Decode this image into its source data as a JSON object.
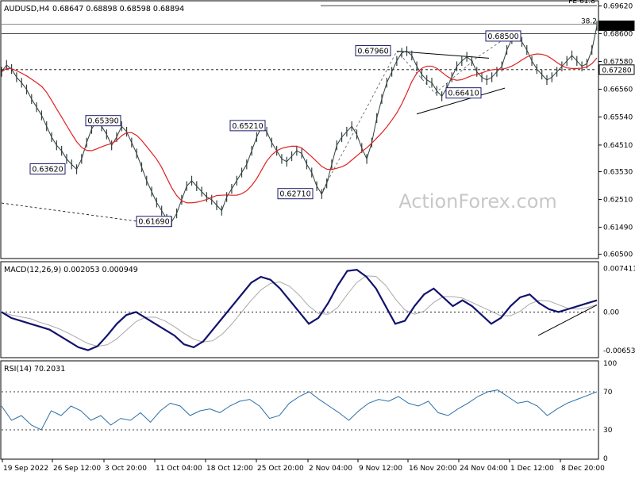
{
  "chart_data": [
    {
      "type": "line",
      "title": "AUDUSD,H4",
      "ohlc": "0.68647 0.68898 0.68598 0.68894",
      "watermark": "ActionForex.com",
      "ylim": [
        0.604,
        0.6975
      ],
      "y_ticks": [
        "0.69620",
        "0.68600",
        "0.67580",
        "0.66560",
        "0.65540",
        "0.64510",
        "0.63530",
        "0.62510",
        "0.61490",
        "0.60500"
      ],
      "x_ticks": [
        "19 Sep 2022",
        "26 Sep 12:00",
        "3 Oct 20:00",
        "11 Oct 04:00",
        "18 Oct 12:00",
        "25 Oct 20:00",
        "2 Nov 04:00",
        "9 Nov 12:00",
        "16 Nov 20:00",
        "24 Nov 04:00",
        "1 Dec 12:00",
        "8 Dec 20:00"
      ],
      "price": [
        0.672,
        0.6745,
        0.673,
        0.67,
        0.668,
        0.6655,
        0.662,
        0.659,
        0.656,
        0.652,
        0.648,
        0.645,
        0.643,
        0.64,
        0.638,
        0.6362,
        0.64,
        0.646,
        0.651,
        0.6539,
        0.652,
        0.649,
        0.645,
        0.648,
        0.652,
        0.65,
        0.646,
        0.642,
        0.637,
        0.632,
        0.628,
        0.624,
        0.621,
        0.618,
        0.6169,
        0.62,
        0.625,
        0.63,
        0.632,
        0.63,
        0.628,
        0.626,
        0.625,
        0.623,
        0.621,
        0.626,
        0.629,
        0.632,
        0.635,
        0.638,
        0.643,
        0.648,
        0.6521,
        0.65,
        0.646,
        0.643,
        0.64,
        0.639,
        0.641,
        0.643,
        0.642,
        0.638,
        0.635,
        0.63,
        0.6271,
        0.631,
        0.638,
        0.645,
        0.648,
        0.65,
        0.652,
        0.649,
        0.644,
        0.64,
        0.646,
        0.655,
        0.662,
        0.668,
        0.672,
        0.676,
        0.679,
        0.6796,
        0.678,
        0.674,
        0.671,
        0.669,
        0.668,
        0.665,
        0.663,
        0.666,
        0.67,
        0.674,
        0.676,
        0.6775,
        0.676,
        0.672,
        0.67,
        0.669,
        0.67,
        0.672,
        0.674,
        0.68,
        0.684,
        0.685,
        0.683,
        0.68,
        0.676,
        0.673,
        0.671,
        0.669,
        0.67,
        0.672,
        0.674,
        0.676,
        0.678,
        0.676,
        0.674,
        0.675,
        0.68,
        0.6889
      ],
      "sma_color": "#e02020",
      "price_color": "#2f3e3e",
      "pivots": [
        {
          "label": "0.63620",
          "value": 0.6362
        },
        {
          "label": "0.65390",
          "value": 0.6539
        },
        {
          "label": "0.61690",
          "value": 0.6169
        },
        {
          "label": "0.65210",
          "value": 0.6521
        },
        {
          "label": "0.62710",
          "value": 0.6271
        },
        {
          "label": "0.67960",
          "value": 0.6796
        },
        {
          "label": "0.66410",
          "value": 0.6641
        },
        {
          "label": "0.68500",
          "value": 0.685
        }
      ],
      "levels": [
        {
          "label": "FE 61.8",
          "value": 0.6963
        },
        {
          "label": "38.2",
          "value": 0.6895
        }
      ],
      "price_tags": [
        {
          "label": "0.68894",
          "value": 0.68894
        },
        {
          "label": "0.67280",
          "value": 0.6728
        }
      ]
    },
    {
      "type": "line",
      "title": "MACD(12,26,9) 0.002053 0.000949",
      "y_ticks": [
        "0.007411",
        "0.00",
        "-0.006532"
      ],
      "ylim": [
        -0.0075,
        0.0083
      ],
      "macd": [
        0.0,
        -0.001,
        -0.0015,
        -0.002,
        -0.0025,
        -0.003,
        -0.004,
        -0.005,
        -0.006,
        -0.0065,
        -0.0058,
        -0.004,
        -0.002,
        -0.0005,
        0.0,
        -0.001,
        -0.002,
        -0.003,
        -0.004,
        -0.0055,
        -0.006,
        -0.005,
        -0.003,
        -0.001,
        0.001,
        0.003,
        0.005,
        0.006,
        0.0055,
        0.004,
        0.002,
        0.0,
        -0.002,
        -0.001,
        0.0015,
        0.0045,
        0.007,
        0.0072,
        0.006,
        0.004,
        0.001,
        -0.002,
        -0.0015,
        0.001,
        0.003,
        0.004,
        0.0025,
        0.001,
        0.002,
        0.001,
        -0.0005,
        -0.002,
        -0.001,
        0.001,
        0.0025,
        0.003,
        0.0015,
        0.0005,
        0.0,
        0.0005,
        0.001,
        0.0015,
        0.002
      ],
      "signal_color": "#a9a9a9",
      "macd_color": "#12126e"
    },
    {
      "type": "line",
      "title": "RSI(14) 70.2031",
      "y_ticks": [
        "100",
        "70",
        "30",
        "0"
      ],
      "ylim": [
        0,
        100
      ],
      "rsi": [
        55,
        40,
        45,
        35,
        30,
        50,
        45,
        55,
        50,
        40,
        45,
        35,
        42,
        40,
        48,
        38,
        50,
        58,
        55,
        45,
        50,
        52,
        48,
        55,
        60,
        62,
        55,
        42,
        45,
        58,
        65,
        70,
        62,
        55,
        48,
        40,
        50,
        58,
        62,
        60,
        65,
        58,
        55,
        60,
        48,
        45,
        52,
        58,
        65,
        70,
        72,
        65,
        58,
        60,
        55,
        45,
        52,
        58,
        62,
        66,
        70
      ]
    }
  ]
}
